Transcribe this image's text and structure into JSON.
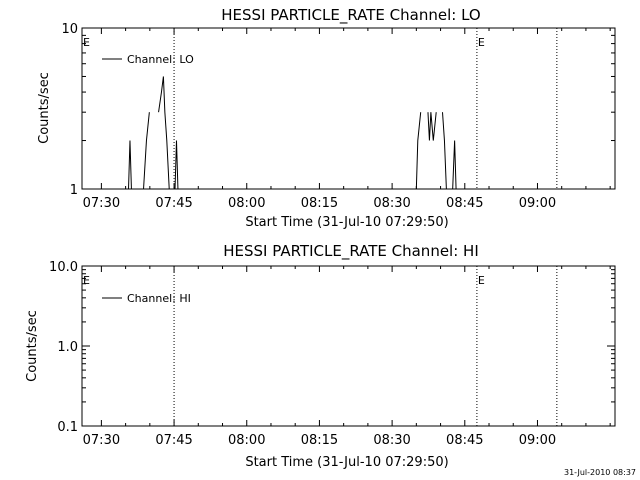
{
  "footer_timestamp": "31-Jul-2010 08:37",
  "chart_data": [
    {
      "type": "line",
      "title": "HESSI PARTICLE_RATE Channel: LO",
      "xlabel": "Start Time (31-Jul-10 07:29:50)",
      "ylabel": "Counts/sec",
      "y_scale": "log",
      "ylim": [
        1,
        10
      ],
      "y_ticks": [
        "1",
        "10"
      ],
      "x_ticks": [
        "07:30",
        "07:45",
        "08:00",
        "08:15",
        "08:30",
        "08:45",
        "09:00"
      ],
      "x_tick_minutes": [
        0,
        15,
        30,
        45,
        60,
        75,
        90
      ],
      "xlim_minutes": [
        -4,
        106
      ],
      "legend": "Channel: LO",
      "legend_position": "top-left",
      "event_lines_minutes": [
        15,
        77.5,
        94
      ],
      "event_markers": [
        {
          "label": "E",
          "minute": -4
        },
        {
          "label": "E",
          "minute": 77.5
        }
      ],
      "series": [
        {
          "name": "Channel: LO",
          "points": [
            [
              5.6,
              1
            ],
            [
              5.9,
              2
            ],
            [
              6.2,
              1
            ],
            [
              8.7,
              1
            ],
            [
              9.3,
              2
            ],
            [
              9.9,
              3
            ],
            [
              11.8,
              3
            ],
            [
              12.4,
              4
            ],
            [
              12.8,
              5
            ],
            [
              13.1,
              3
            ],
            [
              13.5,
              2
            ],
            [
              14.0,
              1
            ],
            [
              15.2,
              1
            ],
            [
              15.5,
              2
            ],
            [
              15.8,
              1
            ],
            [
              65.0,
              1
            ],
            [
              65.3,
              2
            ],
            [
              65.9,
              3
            ],
            [
              67.4,
              3
            ],
            [
              67.7,
              2
            ],
            [
              68.0,
              3
            ],
            [
              68.5,
              2
            ],
            [
              69.1,
              3
            ],
            [
              70.4,
              3
            ],
            [
              70.8,
              2
            ],
            [
              71.2,
              1
            ],
            [
              72.5,
              1
            ],
            [
              72.9,
              2
            ],
            [
              73.2,
              1
            ]
          ]
        }
      ]
    },
    {
      "type": "line",
      "title": "HESSI PARTICLE_RATE Channel: HI",
      "xlabel": "Start Time (31-Jul-10 07:29:50)",
      "ylabel": "Counts/sec",
      "y_scale": "log",
      "ylim": [
        0.1,
        10
      ],
      "y_ticks": [
        "10.0",
        "1.0",
        "0.1"
      ],
      "x_ticks": [
        "07:30",
        "07:45",
        "08:00",
        "08:15",
        "08:30",
        "08:45",
        "09:00"
      ],
      "x_tick_minutes": [
        0,
        15,
        30,
        45,
        60,
        75,
        90
      ],
      "xlim_minutes": [
        -4,
        106
      ],
      "legend": "Channel: HI",
      "legend_position": "top-left",
      "event_lines_minutes": [
        15,
        77.5,
        94
      ],
      "event_markers": [
        {
          "label": "E",
          "minute": -4
        },
        {
          "label": "E",
          "minute": 77.5
        }
      ],
      "series": [
        {
          "name": "Channel: HI",
          "points": []
        }
      ]
    }
  ]
}
